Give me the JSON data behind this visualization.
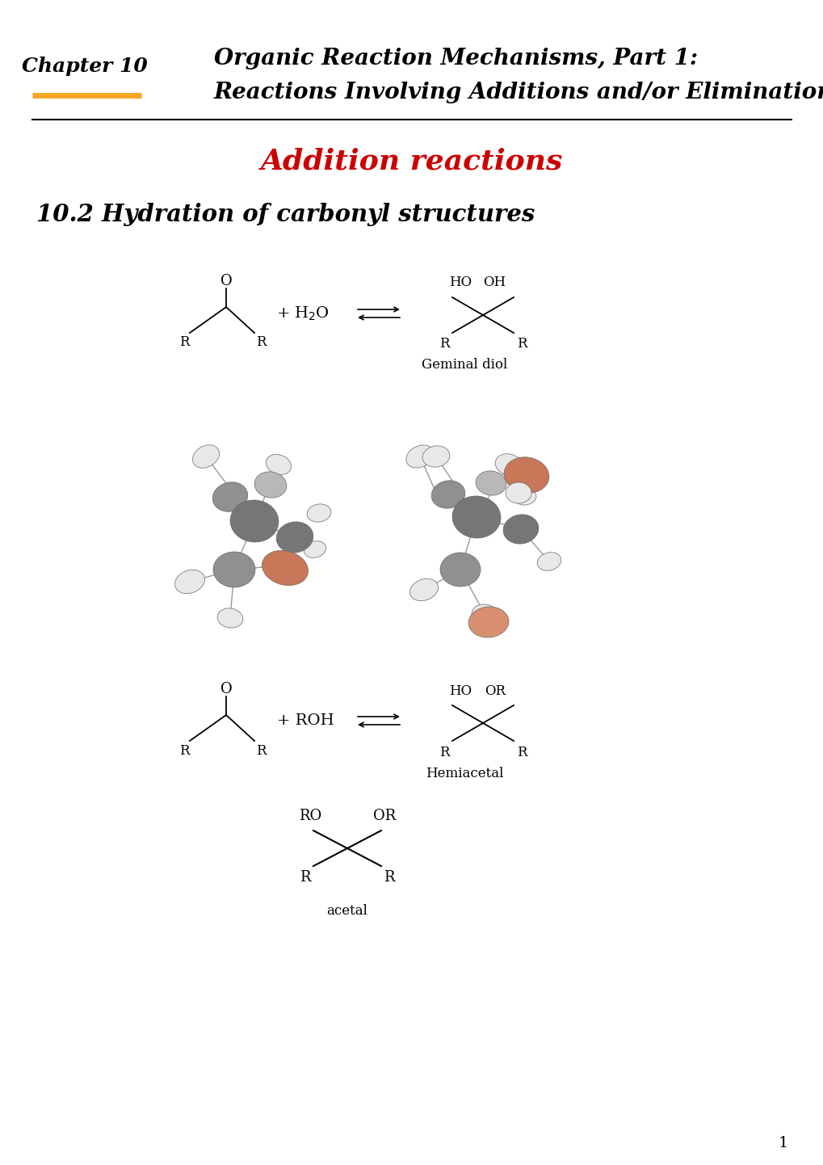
{
  "bg_color": "#ffffff",
  "chapter_label": "Chapter 10",
  "title_line1": "Organic Reaction Mechanisms, Part 1:",
  "title_line2": "Reactions Involving Additions and/or Eliminations",
  "section_title": "Addition reactions",
  "section_title_color": "#cc0000",
  "subsection_title": "10.2 Hydration of carbonyl structures",
  "page_number": "1",
  "fig_width": 10.2,
  "fig_height": 14.42,
  "dpi": 100
}
